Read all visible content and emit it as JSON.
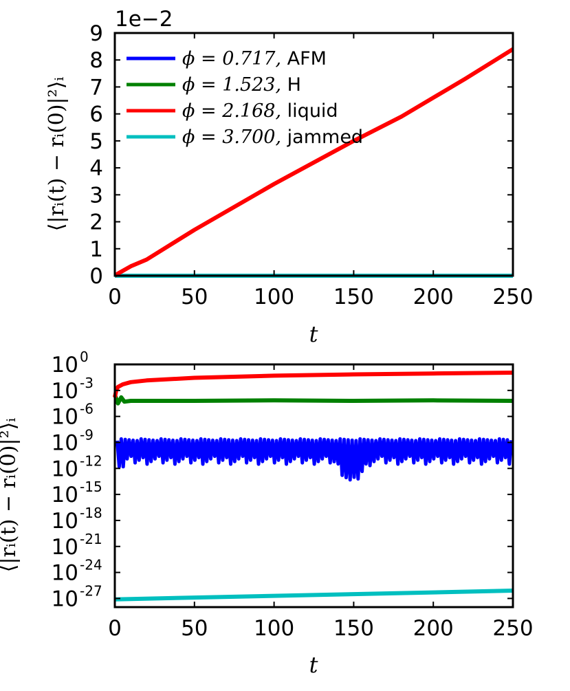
{
  "chart_data": [
    {
      "type": "line",
      "scale": "linear",
      "offset_label": "1e−2",
      "xlabel": "t",
      "ylabel": "⟨|rᵢ(t) − rᵢ(0)|²⟩ᵢ",
      "xlim": [
        0,
        250
      ],
      "ylim": [
        0,
        9
      ],
      "xticks": [
        "0",
        "50",
        "100",
        "150",
        "200",
        "250"
      ],
      "yticks": [
        "0",
        "1",
        "2",
        "3",
        "4",
        "5",
        "6",
        "7",
        "8",
        "9"
      ],
      "legend_position": "upper-left",
      "series": [
        {
          "name": "AFM",
          "phi_label": "ϕ = 0.717,",
          "color": "#0000ff",
          "x": [
            0,
            250
          ],
          "y": [
            0.0,
            0.0
          ]
        },
        {
          "name": "H",
          "phi_label": "ϕ = 1.523,",
          "color": "#008000",
          "x": [
            0,
            250
          ],
          "y": [
            0.0,
            0.0
          ]
        },
        {
          "name": "liquid",
          "phi_label": "ϕ = 2.168,",
          "color": "#ff0000",
          "x": [
            0,
            2,
            5,
            10,
            20,
            50,
            100,
            150,
            180,
            200,
            220,
            250
          ],
          "y": [
            0.0,
            0.08,
            0.18,
            0.35,
            0.6,
            1.7,
            3.4,
            5.0,
            5.9,
            6.6,
            7.3,
            8.4
          ]
        },
        {
          "name": "jammed",
          "phi_label": "ϕ = 3.700,",
          "color": "#00bfbf",
          "x": [
            0,
            250
          ],
          "y": [
            0.0,
            0.0
          ]
        }
      ]
    },
    {
      "type": "line",
      "scale": "log",
      "xlabel": "t",
      "ylabel": "⟨|rᵢ(t) − rᵢ(0)|²⟩ᵢ",
      "xlim": [
        0,
        250
      ],
      "ylim_exponent": [
        -28,
        0
      ],
      "xticks": [
        "0",
        "50",
        "100",
        "150",
        "200",
        "250"
      ],
      "ytick_exponents": [
        "0",
        "-3",
        "-6",
        "-9",
        "-12",
        "-15",
        "-18",
        "-21",
        "-24",
        "-27"
      ],
      "ytick_base": "10",
      "series": [
        {
          "name": "liquid",
          "color": "#ff0000",
          "x": [
            0,
            1,
            2,
            5,
            10,
            20,
            50,
            100,
            150,
            200,
            250
          ],
          "log10y": [
            -3.8,
            -2.9,
            -2.6,
            -2.3,
            -2.05,
            -1.85,
            -1.55,
            -1.3,
            -1.15,
            -1.05,
            -0.95
          ]
        },
        {
          "name": "H",
          "color": "#008000",
          "x": [
            0,
            2,
            4,
            6,
            10,
            50,
            100,
            150,
            200,
            250
          ],
          "log10y": [
            -3.5,
            -4.5,
            -3.8,
            -4.3,
            -4.2,
            -4.2,
            -4.15,
            -4.2,
            -4.15,
            -4.2
          ]
        },
        {
          "name": "AFM",
          "color": "#0000ff",
          "peak_log10": -8.8,
          "trough_base_log10": -10.6,
          "dip_center": 149,
          "dip_depth_log10": -13.3,
          "oscillation_period": 2.5
        },
        {
          "name": "jammed",
          "color": "#00bfbf",
          "x": [
            0,
            50,
            100,
            150,
            200,
            250
          ],
          "log10y": [
            -27.1,
            -26.9,
            -26.7,
            -26.5,
            -26.3,
            -26.1
          ]
        }
      ]
    }
  ]
}
